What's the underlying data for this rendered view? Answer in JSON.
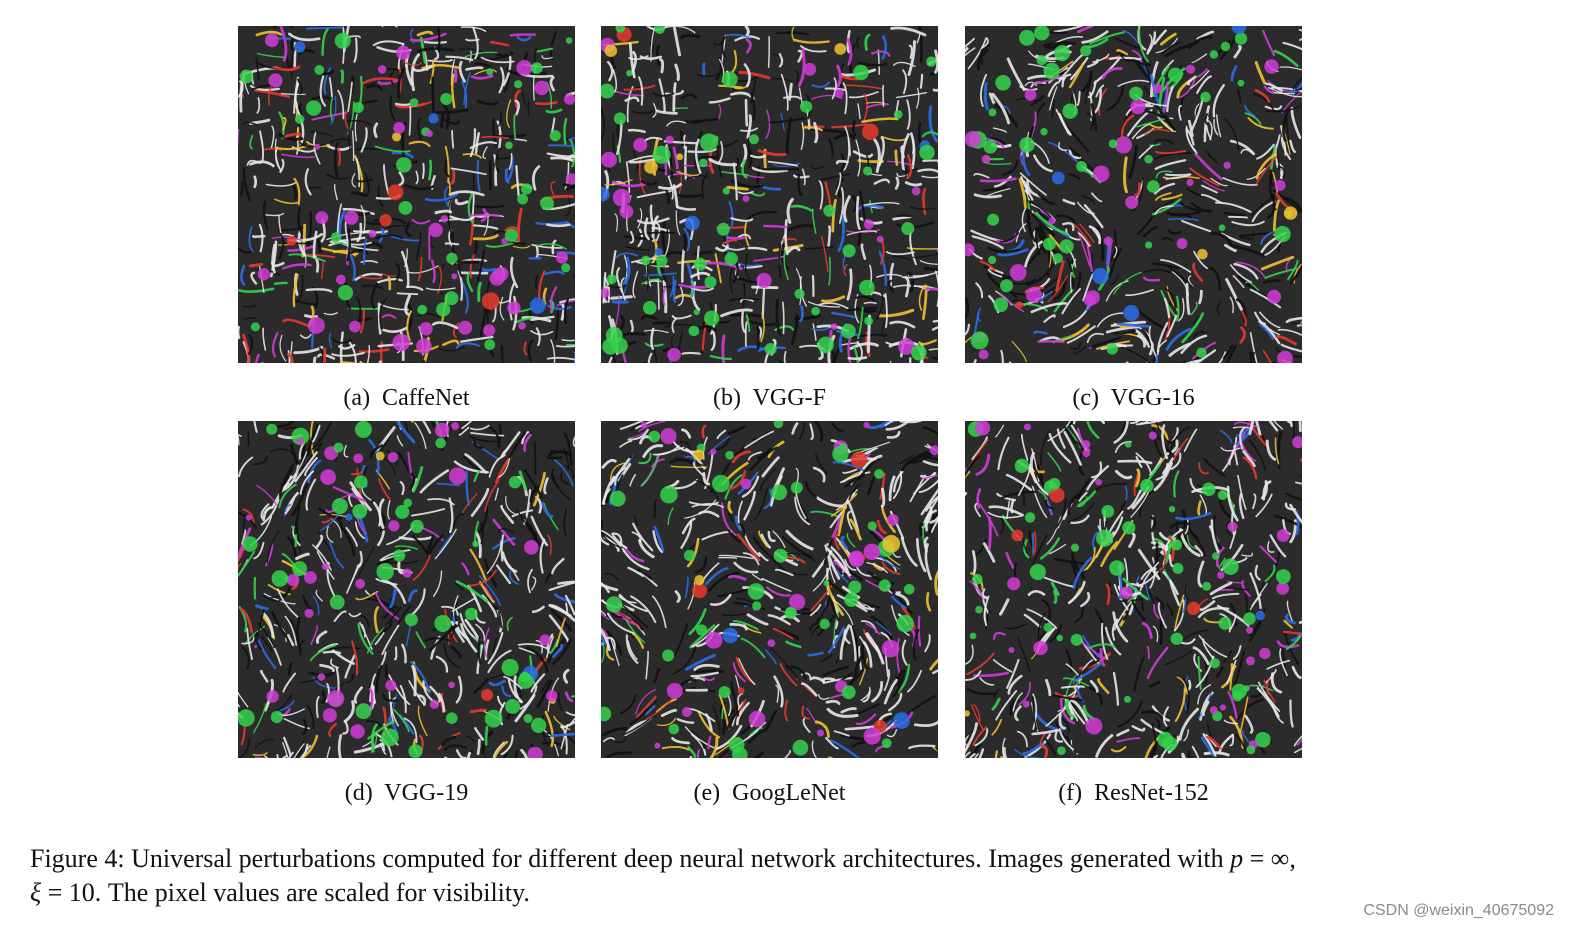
{
  "figure": {
    "panels": [
      {
        "id": "a",
        "label": "(a)  CaffeNet",
        "colors": [
          "#e63a2e",
          "#2a6ee8",
          "#34d24c",
          "#d23cd8",
          "#f0c230",
          "#e8e8e8",
          "#111111"
        ]
      },
      {
        "id": "b",
        "label": "(b)  VGG-F",
        "colors": [
          "#e63a2e",
          "#2a6ee8",
          "#34d24c",
          "#d23cd8",
          "#f0c230",
          "#e8e8e8",
          "#111111"
        ]
      },
      {
        "id": "c",
        "label": "(c)  VGG-16",
        "colors": [
          "#e63a2e",
          "#2a6ee8",
          "#34d24c",
          "#d23cd8",
          "#f0c230",
          "#e8e8e8",
          "#111111"
        ]
      },
      {
        "id": "d",
        "label": "(d)  VGG-19",
        "colors": [
          "#e63a2e",
          "#2a6ee8",
          "#34d24c",
          "#d23cd8",
          "#f0c230",
          "#e8e8e8",
          "#111111"
        ]
      },
      {
        "id": "e",
        "label": "(e)  GoogLeNet",
        "colors": [
          "#e63a2e",
          "#2a6ee8",
          "#34d24c",
          "#d23cd8",
          "#f0c230",
          "#e8e8e8",
          "#111111"
        ]
      },
      {
        "id": "f",
        "label": "(f)  ResNet-152",
        "colors": [
          "#e63a2e",
          "#2a6ee8",
          "#34d24c",
          "#d23cd8",
          "#f0c230",
          "#e8e8e8",
          "#111111"
        ]
      }
    ],
    "caption": {
      "prefix": "Figure 4:  Universal perturbations computed for different deep neural network architectures. Images generated with ",
      "p_symbol": "p",
      "p_rel": " = ∞,",
      "xi_symbol": "ξ",
      "xi_rel": " = 10.",
      "suffix": " The pixel values are scaled for visibility."
    }
  },
  "watermark": "CSDN @weixin_40675092"
}
